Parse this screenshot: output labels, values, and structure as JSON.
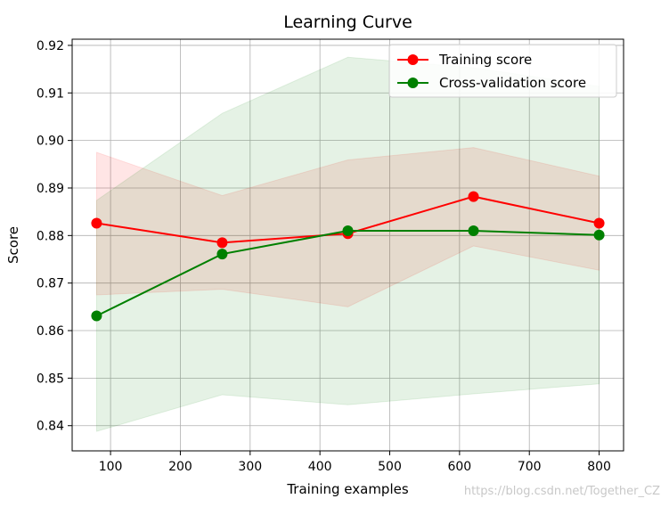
{
  "chart_data": {
    "type": "line",
    "title": "Learning Curve",
    "xlabel": "Training examples",
    "ylabel": "Score",
    "xlim": [
      45,
      835
    ],
    "ylim": [
      0.8347,
      0.9213
    ],
    "xticks": [
      100,
      200,
      300,
      400,
      500,
      600,
      700,
      800
    ],
    "yticks": [
      0.84,
      0.85,
      0.86,
      0.87,
      0.88,
      0.89,
      0.9,
      0.91,
      0.92
    ],
    "ytick_labels": [
      "0.84",
      "0.85",
      "0.86",
      "0.87",
      "0.88",
      "0.89",
      "0.90",
      "0.91",
      "0.92"
    ],
    "grid": true,
    "legend_position": "top-right",
    "x": [
      80,
      260,
      440,
      620,
      800
    ],
    "series": [
      {
        "name": "Training score",
        "color": "#ff0000",
        "values": [
          0.8826,
          0.8785,
          0.8804,
          0.8882,
          0.8826
        ],
        "band_lower": [
          0.8675,
          0.8687,
          0.865,
          0.8778,
          0.8727
        ],
        "band_upper": [
          0.8975,
          0.8884,
          0.8959,
          0.8985,
          0.8925
        ],
        "band_color": "#ff0000",
        "marker": "circle"
      },
      {
        "name": "Cross-validation score",
        "color": "#008000",
        "values": [
          0.8631,
          0.8761,
          0.881,
          0.881,
          0.8801
        ],
        "band_lower": [
          0.8388,
          0.8465,
          0.8444,
          0.8467,
          0.8488
        ],
        "band_upper": [
          0.8874,
          0.9057,
          0.9175,
          0.9153,
          0.9114
        ],
        "band_color": "#008000",
        "marker": "circle"
      }
    ]
  },
  "watermark": "https://blog.csdn.net/Together_CZ"
}
